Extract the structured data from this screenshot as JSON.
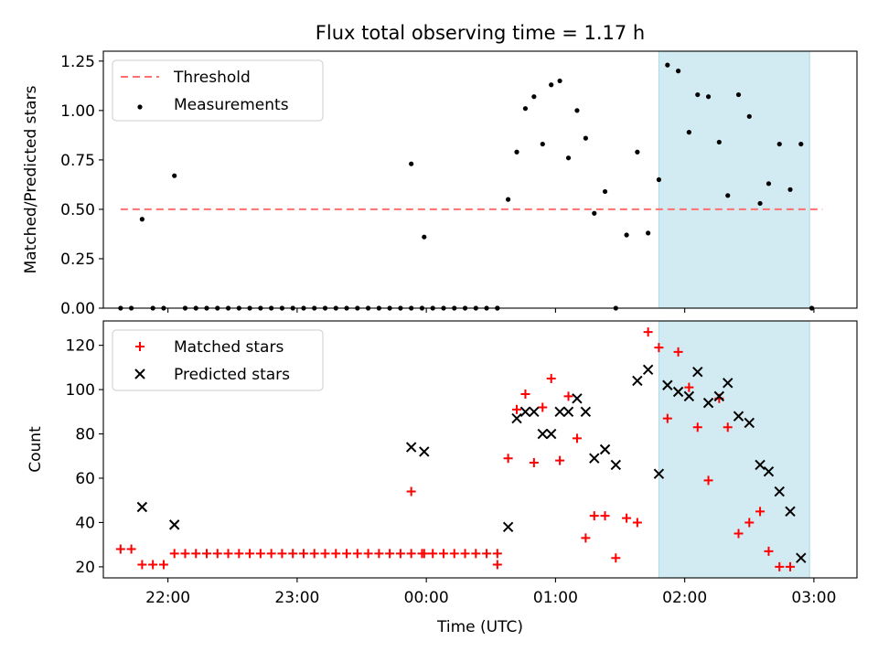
{
  "figure": {
    "title": "Flux total observing time = 1.17 h"
  },
  "chart_data": [
    {
      "type": "scatter",
      "ylabel": "Matched/Predicted stars",
      "xlabel": "",
      "xlim": [
        "21:30",
        "03:20"
      ],
      "ylim": [
        0,
        1.3
      ],
      "yticks": [
        "0.00",
        "0.25",
        "0.50",
        "0.75",
        "1.00",
        "1.25"
      ],
      "xticks": [
        "22:00",
        "23:00",
        "00:00",
        "01:00",
        "02:00",
        "03:00"
      ],
      "show_xtick_labels": false,
      "grid": false,
      "legend": {
        "placement": "top-left",
        "entries": [
          "Threshold",
          "Measurements"
        ]
      },
      "shaded_region": {
        "x_start": "01:48",
        "x_end": "02:58",
        "color": "#add8e6"
      },
      "threshold": {
        "name": "Threshold",
        "value": 0.5,
        "x_start": "21:38",
        "x_end": "03:04",
        "color": "#ff7070",
        "style": "dashed"
      },
      "series": [
        {
          "name": "Measurements",
          "marker": "dot",
          "color": "#000000",
          "points": [
            [
              "21:38",
              0.0
            ],
            [
              "21:43",
              0.0
            ],
            [
              "21:48",
              0.45
            ],
            [
              "21:53",
              0.0
            ],
            [
              "21:58",
              0.0
            ],
            [
              "22:03",
              0.67
            ],
            [
              "22:08",
              0.0
            ],
            [
              "22:13",
              0.0
            ],
            [
              "22:18",
              0.0
            ],
            [
              "22:23",
              0.0
            ],
            [
              "22:28",
              0.0
            ],
            [
              "22:33",
              0.0
            ],
            [
              "22:38",
              0.0
            ],
            [
              "22:43",
              0.0
            ],
            [
              "22:48",
              0.0
            ],
            [
              "22:53",
              0.0
            ],
            [
              "22:58",
              0.0
            ],
            [
              "23:03",
              0.0
            ],
            [
              "23:08",
              0.0
            ],
            [
              "23:13",
              0.0
            ],
            [
              "23:18",
              0.0
            ],
            [
              "23:23",
              0.0
            ],
            [
              "23:28",
              0.0
            ],
            [
              "23:33",
              0.0
            ],
            [
              "23:38",
              0.0
            ],
            [
              "23:43",
              0.0
            ],
            [
              "23:48",
              0.0
            ],
            [
              "23:53",
              0.0
            ],
            [
              "23:58",
              0.0
            ],
            [
              "00:03",
              0.0
            ],
            [
              "00:08",
              0.0
            ],
            [
              "00:13",
              0.0
            ],
            [
              "00:18",
              0.0
            ],
            [
              "00:23",
              0.0
            ],
            [
              "00:28",
              0.0
            ],
            [
              "00:33",
              0.0
            ],
            [
              "23:53",
              0.73
            ],
            [
              "23:59",
              0.36
            ],
            [
              "00:33",
              0.0
            ],
            [
              "00:38",
              0.55
            ],
            [
              "00:42",
              0.79
            ],
            [
              "00:46",
              1.01
            ],
            [
              "00:50",
              1.07
            ],
            [
              "00:54",
              0.83
            ],
            [
              "00:58",
              1.13
            ],
            [
              "01:02",
              1.15
            ],
            [
              "01:06",
              0.76
            ],
            [
              "01:10",
              1.0
            ],
            [
              "01:14",
              0.86
            ],
            [
              "01:18",
              0.48
            ],
            [
              "01:23",
              0.59
            ],
            [
              "01:28",
              0.0
            ],
            [
              "01:33",
              0.37
            ],
            [
              "01:38",
              0.79
            ],
            [
              "01:43",
              0.38
            ],
            [
              "01:48",
              0.65
            ],
            [
              "01:52",
              1.23
            ],
            [
              "01:57",
              1.2
            ],
            [
              "02:02",
              0.89
            ],
            [
              "02:06",
              1.08
            ],
            [
              "02:11",
              1.07
            ],
            [
              "02:16",
              0.84
            ],
            [
              "02:20",
              0.57
            ],
            [
              "02:25",
              1.08
            ],
            [
              "02:30",
              0.97
            ],
            [
              "02:35",
              0.53
            ],
            [
              "02:39",
              0.63
            ],
            [
              "02:44",
              0.83
            ],
            [
              "02:49",
              0.6
            ],
            [
              "02:54",
              0.83
            ],
            [
              "02:59",
              0.0
            ]
          ]
        }
      ]
    },
    {
      "type": "scatter",
      "ylabel": "Count",
      "xlabel": "Time (UTC)",
      "xlim": [
        "21:30",
        "03:20"
      ],
      "ylim": [
        15,
        131
      ],
      "yticks": [
        "20",
        "40",
        "60",
        "80",
        "100",
        "120"
      ],
      "xticks": [
        "22:00",
        "23:00",
        "00:00",
        "01:00",
        "02:00",
        "03:00"
      ],
      "grid": false,
      "legend": {
        "placement": "top-left",
        "entries": [
          "Matched stars",
          "Predicted stars"
        ]
      },
      "shaded_region": {
        "x_start": "01:48",
        "x_end": "02:58",
        "color": "#add8e6"
      },
      "series": [
        {
          "name": "Matched stars",
          "marker": "plus",
          "color": "#ff0000",
          "points": [
            [
              "21:38",
              28
            ],
            [
              "21:43",
              28
            ],
            [
              "21:48",
              21
            ],
            [
              "21:53",
              21
            ],
            [
              "21:58",
              21
            ],
            [
              "22:03",
              26
            ],
            [
              "22:08",
              26
            ],
            [
              "22:13",
              26
            ],
            [
              "22:18",
              26
            ],
            [
              "22:23",
              26
            ],
            [
              "22:28",
              26
            ],
            [
              "22:33",
              26
            ],
            [
              "22:38",
              26
            ],
            [
              "22:43",
              26
            ],
            [
              "22:48",
              26
            ],
            [
              "22:53",
              26
            ],
            [
              "22:58",
              26
            ],
            [
              "23:03",
              26
            ],
            [
              "23:08",
              26
            ],
            [
              "23:13",
              26
            ],
            [
              "23:18",
              26
            ],
            [
              "23:23",
              26
            ],
            [
              "23:28",
              26
            ],
            [
              "23:33",
              26
            ],
            [
              "23:38",
              26
            ],
            [
              "23:43",
              26
            ],
            [
              "23:48",
              26
            ],
            [
              "23:53",
              26
            ],
            [
              "23:58",
              26
            ],
            [
              "00:03",
              26
            ],
            [
              "00:08",
              26
            ],
            [
              "00:13",
              26
            ],
            [
              "00:18",
              26
            ],
            [
              "00:23",
              26
            ],
            [
              "00:28",
              26
            ],
            [
              "00:33",
              26
            ],
            [
              "23:53",
              54
            ],
            [
              "23:59",
              26
            ],
            [
              "00:33",
              21
            ],
            [
              "00:38",
              69
            ],
            [
              "00:42",
              91
            ],
            [
              "00:46",
              98
            ],
            [
              "00:50",
              67
            ],
            [
              "00:54",
              92
            ],
            [
              "00:58",
              105
            ],
            [
              "01:02",
              68
            ],
            [
              "01:06",
              97
            ],
            [
              "01:10",
              78
            ],
            [
              "01:14",
              33
            ],
            [
              "01:18",
              43
            ],
            [
              "01:23",
              43
            ],
            [
              "01:28",
              24
            ],
            [
              "01:33",
              42
            ],
            [
              "01:38",
              40
            ],
            [
              "01:43",
              126
            ],
            [
              "01:48",
              119
            ],
            [
              "01:52",
              87
            ],
            [
              "01:57",
              117
            ],
            [
              "02:02",
              101
            ],
            [
              "02:06",
              83
            ],
            [
              "02:11",
              59
            ],
            [
              "02:16",
              96
            ],
            [
              "02:20",
              83
            ],
            [
              "02:25",
              35
            ],
            [
              "02:30",
              40
            ],
            [
              "02:35",
              45
            ],
            [
              "02:39",
              27
            ],
            [
              "02:44",
              20
            ],
            [
              "02:49",
              20
            ]
          ]
        },
        {
          "name": "Predicted stars",
          "marker": "x",
          "color": "#000000",
          "points": [
            [
              "21:48",
              47
            ],
            [
              "22:03",
              39
            ],
            [
              "23:53",
              74
            ],
            [
              "23:59",
              72
            ],
            [
              "00:38",
              38
            ],
            [
              "00:42",
              87
            ],
            [
              "00:46",
              90
            ],
            [
              "00:50",
              90
            ],
            [
              "00:54",
              80
            ],
            [
              "00:58",
              80
            ],
            [
              "01:02",
              90
            ],
            [
              "01:06",
              90
            ],
            [
              "01:10",
              96
            ],
            [
              "01:14",
              90
            ],
            [
              "01:18",
              69
            ],
            [
              "01:23",
              73
            ],
            [
              "01:28",
              66
            ],
            [
              "01:38",
              104
            ],
            [
              "01:43",
              109
            ],
            [
              "01:48",
              62
            ],
            [
              "01:52",
              102
            ],
            [
              "01:57",
              99
            ],
            [
              "02:02",
              97
            ],
            [
              "02:06",
              108
            ],
            [
              "02:11",
              94
            ],
            [
              "02:16",
              97
            ],
            [
              "02:20",
              103
            ],
            [
              "02:25",
              88
            ],
            [
              "02:30",
              85
            ],
            [
              "02:35",
              66
            ],
            [
              "02:39",
              63
            ],
            [
              "02:44",
              54
            ],
            [
              "02:49",
              45
            ],
            [
              "02:54",
              24
            ]
          ]
        }
      ]
    }
  ]
}
